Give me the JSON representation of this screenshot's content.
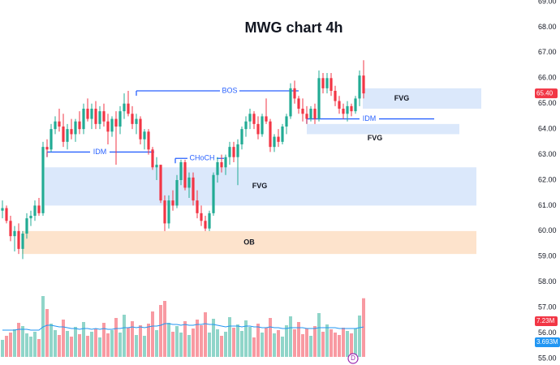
{
  "chart_data": {
    "type": "candlestick",
    "title": "MWG chart 4h",
    "ylim": [
      55,
      69
    ],
    "yticks": [
      {
        "value": 55,
        "label": "55.00"
      },
      {
        "value": 56,
        "label": "56.00"
      },
      {
        "value": 57,
        "label": "57.00"
      },
      {
        "value": 58,
        "label": "58.00"
      },
      {
        "value": 59,
        "label": "59.00"
      },
      {
        "value": 60,
        "label": "60.00"
      },
      {
        "value": 61,
        "label": "61.00"
      },
      {
        "value": 62,
        "label": "62.00"
      },
      {
        "value": 63,
        "label": "63.00"
      },
      {
        "value": 64,
        "label": "64.00"
      },
      {
        "value": 65,
        "label": "65.00"
      },
      {
        "value": 66,
        "label": "66.00"
      },
      {
        "value": 67,
        "label": "67.00"
      },
      {
        "value": 68,
        "label": "68.00"
      },
      {
        "value": 69,
        "label": "69.00"
      }
    ],
    "up_color": "#22ab94",
    "down_color": "#f23645",
    "candles": [
      [
        60.8,
        61.2,
        60.5,
        60.9
      ],
      [
        60.9,
        61.0,
        60.3,
        60.4
      ],
      [
        60.4,
        60.6,
        59.6,
        59.8
      ],
      [
        59.8,
        60.2,
        59.2,
        60.0
      ],
      [
        60.0,
        60.3,
        59.1,
        59.3
      ],
      [
        59.3,
        60.0,
        58.9,
        59.9
      ],
      [
        59.9,
        60.7,
        59.7,
        60.5
      ],
      [
        60.5,
        60.8,
        60.2,
        60.6
      ],
      [
        60.6,
        61.2,
        60.4,
        61.0
      ],
      [
        61.0,
        61.3,
        60.6,
        60.7
      ],
      [
        60.7,
        63.5,
        60.6,
        63.3
      ],
      [
        63.3,
        63.6,
        62.9,
        63.2
      ],
      [
        63.2,
        64.2,
        63.1,
        64.0
      ],
      [
        64.0,
        64.5,
        63.8,
        64.3
      ],
      [
        64.3,
        64.8,
        63.9,
        64.1
      ],
      [
        64.1,
        64.6,
        63.3,
        63.5
      ],
      [
        63.5,
        64.2,
        63.2,
        64.0
      ],
      [
        64.0,
        64.4,
        63.6,
        63.8
      ],
      [
        63.8,
        64.4,
        63.5,
        64.3
      ],
      [
        64.3,
        64.7,
        63.8,
        64.0
      ],
      [
        64.0,
        65.0,
        63.8,
        64.8
      ],
      [
        64.8,
        65.2,
        64.3,
        64.4
      ],
      [
        64.4,
        65.0,
        64.0,
        64.8
      ],
      [
        64.8,
        65.1,
        64.0,
        64.2
      ],
      [
        64.2,
        64.9,
        64.0,
        64.7
      ],
      [
        64.7,
        65.0,
        64.1,
        64.3
      ],
      [
        64.3,
        64.6,
        63.4,
        63.9
      ],
      [
        63.9,
        64.5,
        63.7,
        64.4
      ],
      [
        64.4,
        64.7,
        62.6,
        64.1
      ],
      [
        64.1,
        64.9,
        63.8,
        64.7
      ],
      [
        64.7,
        65.4,
        64.4,
        65.0
      ],
      [
        65.0,
        65.5,
        64.5,
        64.6
      ],
      [
        64.6,
        64.9,
        64.0,
        64.2
      ],
      [
        64.2,
        64.6,
        63.8,
        64.4
      ],
      [
        64.4,
        64.5,
        63.4,
        63.6
      ],
      [
        63.6,
        64.0,
        63.2,
        63.9
      ],
      [
        63.9,
        64.0,
        63.0,
        63.2
      ],
      [
        63.2,
        63.3,
        62.4,
        62.5
      ],
      [
        62.5,
        62.9,
        62.0,
        62.6
      ],
      [
        62.6,
        62.6,
        61.1,
        61.2
      ],
      [
        61.2,
        61.4,
        60.0,
        60.3
      ],
      [
        60.3,
        61.4,
        60.1,
        61.2
      ],
      [
        61.2,
        61.6,
        60.8,
        61.0
      ],
      [
        61.0,
        62.2,
        60.9,
        62.0
      ],
      [
        62.0,
        62.8,
        61.8,
        62.7
      ],
      [
        62.7,
        62.8,
        61.6,
        61.7
      ],
      [
        61.7,
        62.3,
        61.3,
        62.1
      ],
      [
        62.1,
        62.3,
        61.0,
        61.2
      ],
      [
        61.2,
        61.6,
        60.5,
        60.7
      ],
      [
        60.7,
        61.0,
        60.2,
        60.4
      ],
      [
        60.4,
        60.6,
        60.0,
        60.1
      ],
      [
        60.1,
        60.8,
        60.0,
        60.7
      ],
      [
        60.7,
        62.3,
        60.6,
        62.2
      ],
      [
        62.2,
        62.9,
        61.9,
        62.7
      ],
      [
        62.7,
        63.0,
        62.3,
        62.5
      ],
      [
        62.5,
        63.0,
        62.2,
        62.9
      ],
      [
        62.9,
        63.5,
        62.6,
        63.3
      ],
      [
        63.3,
        63.5,
        62.7,
        62.9
      ],
      [
        62.9,
        63.6,
        61.8,
        63.4
      ],
      [
        63.4,
        64.1,
        63.2,
        64.0
      ],
      [
        64.0,
        64.5,
        63.7,
        64.3
      ],
      [
        64.3,
        64.8,
        64.0,
        64.6
      ],
      [
        64.6,
        64.7,
        64.0,
        64.2
      ],
      [
        64.2,
        64.5,
        63.6,
        63.8
      ],
      [
        63.8,
        64.6,
        63.7,
        64.5
      ],
      [
        64.5,
        65.2,
        64.2,
        64.3
      ],
      [
        64.3,
        64.4,
        63.1,
        63.3
      ],
      [
        63.3,
        63.8,
        63.1,
        63.7
      ],
      [
        63.7,
        64.0,
        63.3,
        63.5
      ],
      [
        63.5,
        64.2,
        63.4,
        64.1
      ],
      [
        64.1,
        64.6,
        63.8,
        64.5
      ],
      [
        64.5,
        65.8,
        64.4,
        65.6
      ],
      [
        65.6,
        65.9,
        65.0,
        65.2
      ],
      [
        65.2,
        65.3,
        64.6,
        64.8
      ],
      [
        64.8,
        65.2,
        64.3,
        64.6
      ],
      [
        64.6,
        64.9,
        64.2,
        64.4
      ],
      [
        64.4,
        64.9,
        64.3,
        64.8
      ],
      [
        64.8,
        65.0,
        64.2,
        64.4
      ],
      [
        64.4,
        66.3,
        64.3,
        66.0
      ],
      [
        66.0,
        66.2,
        65.4,
        65.6
      ],
      [
        65.6,
        66.2,
        65.4,
        66.0
      ],
      [
        66.0,
        66.2,
        65.3,
        65.5
      ],
      [
        65.5,
        65.7,
        64.9,
        65.1
      ],
      [
        65.1,
        65.3,
        64.6,
        64.8
      ],
      [
        64.8,
        65.0,
        64.4,
        64.6
      ],
      [
        64.6,
        65.1,
        64.3,
        64.9
      ],
      [
        64.9,
        65.0,
        64.5,
        64.7
      ],
      [
        64.7,
        65.3,
        64.6,
        65.2
      ],
      [
        65.2,
        66.3,
        64.9,
        66.1
      ],
      [
        66.1,
        66.7,
        65.2,
        65.4
      ]
    ],
    "y2lim": [
      0,
      8.5
    ],
    "volume": [
      2.1,
      2.6,
      3.0,
      3.4,
      4.2,
      3.8,
      2.9,
      2.5,
      3.1,
      2.2,
      7.5,
      5.9,
      4.1,
      3.3,
      2.7,
      4.6,
      3.2,
      2.5,
      3.7,
      2.8,
      4.3,
      2.6,
      3.1,
      3.5,
      2.4,
      4.2,
      2.9,
      3.3,
      4.8,
      3.0,
      5.2,
      3.6,
      4.4,
      2.7,
      3.9,
      2.6,
      4.1,
      5.6,
      3.3,
      6.4,
      6.9,
      4.2,
      3.1,
      3.8,
      3.0,
      4.4,
      2.7,
      3.5,
      4.6,
      3.9,
      5.5,
      3.0,
      4.7,
      3.4,
      2.6,
      3.1,
      4.9,
      3.6,
      4.0,
      3.2,
      4.5,
      3.7,
      2.4,
      4.1,
      3.0,
      3.6,
      4.8,
      2.9,
      3.3,
      2.5,
      3.9,
      5.0,
      3.4,
      4.3,
      2.8,
      3.5,
      2.6,
      3.8,
      5.4,
      3.1,
      4.0,
      3.4,
      3.0,
      2.7,
      3.6,
      3.2,
      2.9,
      3.5,
      5.1,
      7.23
    ],
    "volume_ma": [
      3.3,
      3.3,
      3.3,
      3.3,
      3.4,
      3.4,
      3.4,
      3.3,
      3.3,
      3.3,
      3.7,
      3.9,
      3.9,
      3.8,
      3.7,
      3.7,
      3.6,
      3.5,
      3.5,
      3.4,
      3.5,
      3.5,
      3.4,
      3.5,
      3.4,
      3.5,
      3.4,
      3.4,
      3.5,
      3.5,
      3.6,
      3.6,
      3.7,
      3.6,
      3.7,
      3.6,
      3.7,
      3.8,
      3.8,
      3.9,
      4.1,
      4.1,
      4.0,
      4.0,
      3.9,
      4.0,
      3.9,
      3.9,
      4.0,
      4.0,
      4.1,
      4.0,
      4.0,
      3.9,
      3.8,
      3.7,
      3.8,
      3.8,
      3.8,
      3.7,
      3.8,
      3.8,
      3.7,
      3.7,
      3.6,
      3.6,
      3.7,
      3.6,
      3.6,
      3.5,
      3.5,
      3.6,
      3.6,
      3.6,
      3.6,
      3.5,
      3.5,
      3.5,
      3.6,
      3.6,
      3.6,
      3.6,
      3.6,
      3.5,
      3.5,
      3.5,
      3.5,
      3.5,
      3.6,
      3.693
    ],
    "last_price_label": "65.40",
    "last_volume_label": "7.23M",
    "volume_ma_label": "3.693M",
    "zones": [
      {
        "label": "FVG",
        "top": 65.6,
        "bottom": 64.8
      },
      {
        "label": "FVG",
        "top": 64.2,
        "bottom": 63.8
      },
      {
        "label": "FVG",
        "top": 62.5,
        "bottom": 61.0
      },
      {
        "label": "OB",
        "top": 60.0,
        "bottom": 59.1
      }
    ],
    "levels": [
      {
        "label": "BOS",
        "price": 65.5
      },
      {
        "label": "IDM",
        "price": 63.1
      },
      {
        "label": "CHoCH",
        "price": 62.85
      },
      {
        "label": "IDM",
        "price": 64.4
      }
    ],
    "dividend_marker": "D"
  }
}
